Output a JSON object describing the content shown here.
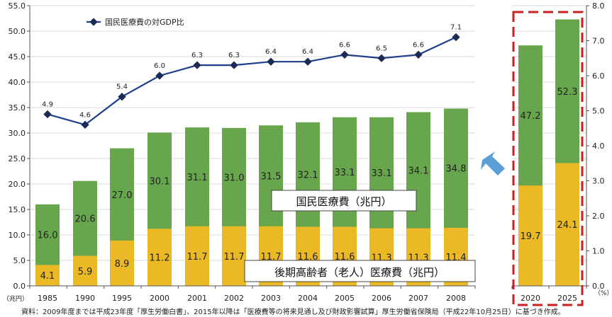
{
  "chart_data": {
    "type": "bar",
    "categories": [
      "1985",
      "1990",
      "1995",
      "2000",
      "2001",
      "2002",
      "2003",
      "2004",
      "2005",
      "2006",
      "2007",
      "2008",
      "2020",
      "2025"
    ],
    "series": [
      {
        "name": "後期高齢者（老人）医療費（兆円）",
        "values": [
          4.1,
          5.9,
          8.9,
          11.2,
          11.7,
          11.7,
          11.7,
          11.6,
          11.6,
          11.3,
          11.3,
          11.4,
          19.7,
          24.1
        ],
        "color": "#ebb826"
      },
      {
        "name": "国民医療費（兆円）",
        "values": [
          16.0,
          20.6,
          27.0,
          30.1,
          31.1,
          31.0,
          31.5,
          32.1,
          33.1,
          33.1,
          34.1,
          34.8,
          47.2,
          52.3
        ],
        "color": "#67a64d"
      }
    ],
    "line_series": {
      "name": "国民医療費の対GDP比",
      "categories": [
        "1985",
        "1990",
        "1995",
        "2000",
        "2001",
        "2002",
        "2003",
        "2004",
        "2005",
        "2006",
        "2007",
        "2008"
      ],
      "values": [
        4.9,
        4.6,
        5.4,
        6.0,
        6.3,
        6.3,
        6.4,
        6.4,
        6.6,
        6.5,
        6.6,
        7.1
      ],
      "color": "#1f3f8a"
    },
    "y_left": {
      "unit": "（兆円）",
      "ylim": [
        0,
        55
      ],
      "ticks": [
        "0.0",
        "5.0",
        "10.0",
        "15.0",
        "20.0",
        "25.0",
        "30.0",
        "35.0",
        "40.0",
        "45.0",
        "50.0",
        "55.0"
      ]
    },
    "y_right": {
      "unit": "（%）",
      "ylim": [
        0,
        8
      ],
      "ticks": [
        "0.0",
        "1.0",
        "2.0",
        "3.0",
        "4.0",
        "5.0",
        "6.0",
        "7.0",
        "8.0"
      ]
    },
    "grid": true,
    "legend": "top-left",
    "box_label_total": "国民医療費（兆円）",
    "box_label_elderly": "後期高齢者（老人）医療費（兆円）",
    "projection_categories": [
      "2020",
      "2025"
    ]
  },
  "source_note": "資料：2009年度までは平成23年度「厚生労働白書」、2015年以降は「医療費等の将来見通し及び財政影響試算」厚生労働省保険局（平成22年10月25日）に基づき作成。",
  "colors": {
    "accent_dash": "#cc1f1f",
    "arrow": "#5a9fd8",
    "grid": "#d9d9d9"
  }
}
